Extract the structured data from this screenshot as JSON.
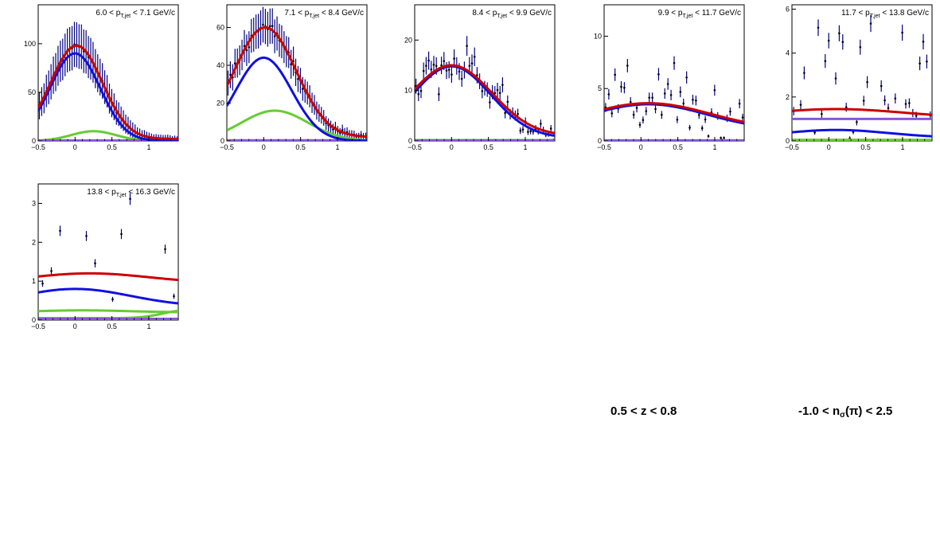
{
  "captions": {
    "z_range": "0.5 < z < 0.8",
    "nsigma": {
      "pre": "-1.0 < n",
      "sub": "σ",
      "post": "(π) < 2.5"
    }
  },
  "colors": {
    "data": "#000080",
    "total_fit": "#cc0000",
    "component_blue": "#1010e0",
    "component_green": "#66cc33",
    "component_purple": "#8855dd"
  },
  "chart_data": [
    {
      "type": "scatter",
      "title": {
        "pre": "6.0 < p",
        "sub": "T,jet",
        "post": " < 7.1 GeV/c"
      },
      "xlim": [
        -0.5,
        1.4
      ],
      "ylim": [
        0,
        140
      ],
      "xticks": [
        -0.5,
        0,
        0.5,
        1
      ],
      "xtick_labels": [
        "−0.5",
        "0",
        "0.5",
        "1"
      ],
      "yticks": [
        0,
        50,
        100
      ],
      "ytick_labels": [
        "0",
        "50",
        "100"
      ],
      "bins": 60,
      "data_curve": "total",
      "noise": 0.07,
      "err_scale": 1.0,
      "curves": [
        {
          "name": "total",
          "color": "#cc0000",
          "amp": 96,
          "mu": 0.02,
          "sigma": 0.35,
          "base": 2
        },
        {
          "name": "blue",
          "color": "#1010e0",
          "amp": 90,
          "mu": 0.0,
          "sigma": 0.34,
          "base": 0
        },
        {
          "name": "green",
          "color": "#66cc33",
          "amp": 10,
          "mu": 0.25,
          "sigma": 0.3,
          "base": 0
        },
        {
          "name": "purple",
          "color": "#8855dd",
          "amp": 0,
          "mu": 0,
          "sigma": 1,
          "base": 0.4
        }
      ]
    },
    {
      "type": "scatter",
      "title": {
        "pre": "7.1 < p",
        "sub": "T,jet",
        "post": " < 8.4 GeV/c"
      },
      "xlim": [
        -0.5,
        1.4
      ],
      "ylim": [
        0,
        72
      ],
      "xticks": [
        -0.5,
        0,
        0.5,
        1
      ],
      "xtick_labels": [
        "−0.5",
        "0",
        "0.5",
        "1"
      ],
      "yticks": [
        0,
        20,
        40,
        60
      ],
      "ytick_labels": [
        "0",
        "20",
        "40",
        "60"
      ],
      "bins": 60,
      "data_curve": "total",
      "noise": 0.12,
      "err_scale": 1.0,
      "curves": [
        {
          "name": "total",
          "color": "#cc0000",
          "amp": 58,
          "mu": 0.02,
          "sigma": 0.42,
          "base": 2
        },
        {
          "name": "blue",
          "color": "#1010e0",
          "amp": 44,
          "mu": 0.0,
          "sigma": 0.38,
          "base": 0
        },
        {
          "name": "green",
          "color": "#66cc33",
          "amp": 16,
          "mu": 0.15,
          "sigma": 0.45,
          "base": 0
        },
        {
          "name": "purple",
          "color": "#8855dd",
          "amp": 0,
          "mu": 0,
          "sigma": 1,
          "base": 0.3
        }
      ]
    },
    {
      "type": "scatter",
      "title": {
        "pre": "8.4 < p",
        "sub": "T,jet",
        "post": " < 9.9 GeV/c"
      },
      "xlim": [
        -0.5,
        1.4
      ],
      "ylim": [
        0,
        27
      ],
      "xticks": [
        -0.5,
        0,
        0.5,
        1
      ],
      "xtick_labels": [
        "−0.5",
        "0",
        "0.5",
        "1"
      ],
      "yticks": [
        0,
        10,
        20
      ],
      "ytick_labels": [
        "0",
        "10",
        "20"
      ],
      "bins": 55,
      "data_curve": "total",
      "noise": 0.3,
      "err_scale": 1.0,
      "curves": [
        {
          "name": "total",
          "color": "#cc0000",
          "amp": 14,
          "mu": 0.0,
          "sigma": 0.55,
          "base": 1
        },
        {
          "name": "blue",
          "color": "#1010e0",
          "amp": 14.2,
          "mu": 0.0,
          "sigma": 0.53,
          "base": 0.6
        },
        {
          "name": "green",
          "color": "#66cc33",
          "amp": 0,
          "mu": 0,
          "sigma": 1,
          "base": 0.15
        },
        {
          "name": "purple",
          "color": "#8855dd",
          "amp": 0,
          "mu": 0,
          "sigma": 1,
          "base": 0.1
        }
      ]
    },
    {
      "type": "scatter",
      "title": {
        "pre": "9.9 < p",
        "sub": "T,jet",
        "post": " < 11.7 GeV/c"
      },
      "xlim": [
        -0.5,
        1.4
      ],
      "ylim": [
        0,
        13
      ],
      "xticks": [
        -0.5,
        0,
        0.5,
        1
      ],
      "xtick_labels": [
        "−0.5",
        "0",
        "0.5",
        "1"
      ],
      "yticks": [
        0,
        5,
        10
      ],
      "ytick_labels": [
        "0",
        "5",
        "10"
      ],
      "bins": 45,
      "data_curve": "total",
      "noise": 0.45,
      "err_scale": 1.1,
      "curves": [
        {
          "name": "total",
          "color": "#cc0000",
          "amp": 2.6,
          "mu": 0.1,
          "sigma": 0.85,
          "base": 1.0
        },
        {
          "name": "blue",
          "color": "#1010e0",
          "amp": 2.5,
          "mu": 0.1,
          "sigma": 0.8,
          "base": 1.0
        },
        {
          "name": "green",
          "color": "#66cc33",
          "amp": 0,
          "mu": 0,
          "sigma": 1,
          "base": 0.05
        },
        {
          "name": "purple",
          "color": "#8855dd",
          "amp": 0,
          "mu": 0,
          "sigma": 1,
          "base": 0.05
        }
      ]
    },
    {
      "type": "scatter",
      "title": {
        "pre": "11.7 < p",
        "sub": "T,jet",
        "post": " < 13.8 GeV/c"
      },
      "xlim": [
        -0.5,
        1.4
      ],
      "ylim": [
        0,
        6.2
      ],
      "xticks": [
        -0.5,
        0,
        0.5,
        1
      ],
      "xtick_labels": [
        "−0.5",
        "0",
        "0.5",
        "1"
      ],
      "yticks": [
        0,
        2,
        4,
        6
      ],
      "ytick_labels": [
        "0",
        "2",
        "4",
        "6"
      ],
      "bins": 40,
      "data_curve": "total",
      "noise": 0.9,
      "err_scale": 1.6,
      "curves": [
        {
          "name": "total",
          "color": "#cc0000",
          "amp": 0.4,
          "mu": 0.1,
          "sigma": 0.9,
          "base": 1.05
        },
        {
          "name": "purple",
          "color": "#8855dd",
          "amp": 0,
          "mu": 0,
          "sigma": 1,
          "base": 1.0
        },
        {
          "name": "blue",
          "color": "#1010e0",
          "amp": 0.35,
          "mu": 0.1,
          "sigma": 0.7,
          "base": 0.15
        },
        {
          "name": "green",
          "color": "#66cc33",
          "amp": 0,
          "mu": 0,
          "sigma": 1,
          "base": 0.05
        }
      ]
    },
    {
      "type": "scatter",
      "title": {
        "pre": "13.8 < p",
        "sub": "T,jet",
        "post": " < 16.3 GeV/c"
      },
      "xlim": [
        -0.5,
        1.4
      ],
      "ylim": [
        0,
        3.5
      ],
      "xticks": [
        -0.5,
        0,
        0.5,
        1
      ],
      "xtick_labels": [
        "−0.5",
        "0",
        "0.5",
        "1"
      ],
      "yticks": [
        0,
        1,
        2,
        3
      ],
      "ytick_labels": [
        "0",
        "1",
        "2",
        "3"
      ],
      "bins": 16,
      "data_curve": "total",
      "noise": 0.9,
      "err_scale": 1.5,
      "curves": [
        {
          "name": "total",
          "color": "#cc0000",
          "amp": 0.25,
          "mu": 0.2,
          "sigma": 0.8,
          "base": 0.95
        },
        {
          "name": "blue",
          "color": "#1010e0",
          "amp": 0.45,
          "mu": 0.0,
          "sigma": 0.75,
          "base": 0.35
        },
        {
          "name": "green",
          "color": "#66cc33",
          "amp": 0.05,
          "mu": 0.1,
          "sigma": 0.6,
          "base": 0.2
        },
        {
          "name": "green2",
          "color": "#66cc33",
          "amp": 0.2,
          "mu": 1.5,
          "sigma": 0.3,
          "base": 0.05
        },
        {
          "name": "purple",
          "color": "#8855dd",
          "amp": 0,
          "mu": 0,
          "sigma": 1,
          "base": 0.03
        }
      ]
    }
  ]
}
